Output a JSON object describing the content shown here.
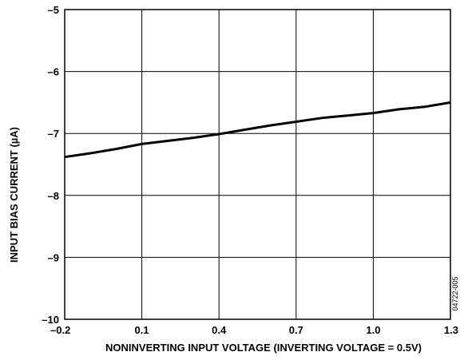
{
  "chart_data": {
    "type": "line",
    "title": "",
    "xlabel": "NONINVERTING INPUT VOLTAGE (INVERTING VOLTAGE = 0.5V)",
    "ylabel": "INPUT BIAS CURRENT (µA)",
    "xlim": [
      -0.2,
      1.3
    ],
    "ylim": [
      -10,
      -5
    ],
    "xticks": [
      -0.2,
      0.1,
      0.4,
      0.7,
      1.0,
      1.3
    ],
    "xtick_labels": [
      "–0.2",
      "0.1",
      "0.4",
      "0.7",
      "1.0",
      "1.3"
    ],
    "yticks": [
      -10,
      -9,
      -8,
      -7,
      -6,
      -5
    ],
    "ytick_labels": [
      "–10",
      "–9",
      "–8",
      "–7",
      "–6",
      "–5"
    ],
    "grid": true,
    "series": [
      {
        "x": [
          -0.2,
          -0.1,
          0.0,
          0.1,
          0.2,
          0.3,
          0.4,
          0.5,
          0.6,
          0.7,
          0.8,
          0.9,
          1.0,
          1.1,
          1.2,
          1.3
        ],
        "y": [
          -7.38,
          -7.32,
          -7.25,
          -7.17,
          -7.12,
          -7.07,
          -7.01,
          -6.94,
          -6.87,
          -6.81,
          -6.75,
          -6.71,
          -6.67,
          -6.61,
          -6.57,
          -6.5
        ],
        "color": "#000000"
      }
    ],
    "figure_id": "04722-005"
  }
}
